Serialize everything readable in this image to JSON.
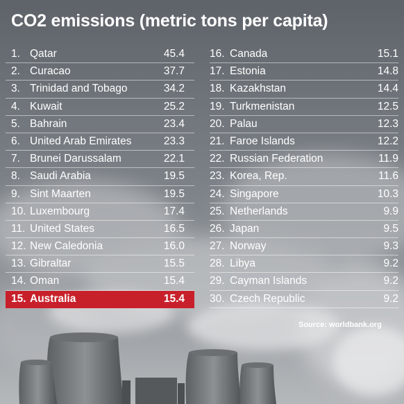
{
  "title": "CO2 emissions (metric tons per capita)",
  "source": "Source: worldbank.org",
  "colors": {
    "highlight": "#c8202b",
    "text": "#ffffff"
  },
  "chart_data": {
    "type": "table",
    "title": "CO2 emissions (metric tons per capita)",
    "columns": [
      "rank",
      "country",
      "value"
    ],
    "highlight_rank": 15,
    "rows": [
      {
        "rank": "1.",
        "country": "Qatar",
        "value": "45.4"
      },
      {
        "rank": "2.",
        "country": "Curacao",
        "value": "37.7"
      },
      {
        "rank": "3.",
        "country": "Trinidad and Tobago",
        "value": "34.2"
      },
      {
        "rank": "4.",
        "country": "Kuwait",
        "value": "25.2"
      },
      {
        "rank": "5.",
        "country": "Bahrain",
        "value": "23.4"
      },
      {
        "rank": "6.",
        "country": "United Arab Emirates",
        "value": "23.3"
      },
      {
        "rank": "7.",
        "country": "Brunei Darussalam",
        "value": "22.1"
      },
      {
        "rank": "8.",
        "country": "Saudi Arabia",
        "value": "19.5"
      },
      {
        "rank": "9.",
        "country": "Sint Maarten",
        "value": "19.5"
      },
      {
        "rank": "10.",
        "country": "Luxembourg",
        "value": "17.4"
      },
      {
        "rank": "11.",
        "country": "United States",
        "value": "16.5"
      },
      {
        "rank": "12.",
        "country": "New Caledonia",
        "value": "16.0"
      },
      {
        "rank": "13.",
        "country": "Gibraltar",
        "value": "15.5"
      },
      {
        "rank": "14.",
        "country": "Oman",
        "value": "15.4"
      },
      {
        "rank": "15.",
        "country": "Australia",
        "value": "15.4"
      },
      {
        "rank": "16.",
        "country": "Canada",
        "value": "15.1"
      },
      {
        "rank": "17.",
        "country": "Estonia",
        "value": "14.8"
      },
      {
        "rank": "18.",
        "country": "Kazakhstan",
        "value": "14.4"
      },
      {
        "rank": "19.",
        "country": "Turkmenistan",
        "value": "12.5"
      },
      {
        "rank": "20.",
        "country": "Palau",
        "value": "12.3"
      },
      {
        "rank": "21.",
        "country": "Faroe Islands",
        "value": "12.2"
      },
      {
        "rank": "22.",
        "country": "Russian Federation",
        "value": "11.9"
      },
      {
        "rank": "23.",
        "country": "Korea, Rep.",
        "value": "11.6"
      },
      {
        "rank": "24.",
        "country": "Singapore",
        "value": "10.3"
      },
      {
        "rank": "25.",
        "country": "Netherlands",
        "value": "9.9"
      },
      {
        "rank": "26.",
        "country": "Japan",
        "value": "9.5"
      },
      {
        "rank": "27.",
        "country": "Norway",
        "value": "9.3"
      },
      {
        "rank": "28.",
        "country": "Libya",
        "value": "9.2"
      },
      {
        "rank": "29.",
        "country": "Cayman Islands",
        "value": "9.2"
      },
      {
        "rank": "30.",
        "country": "Czech Republic",
        "value": "9.2"
      }
    ]
  }
}
